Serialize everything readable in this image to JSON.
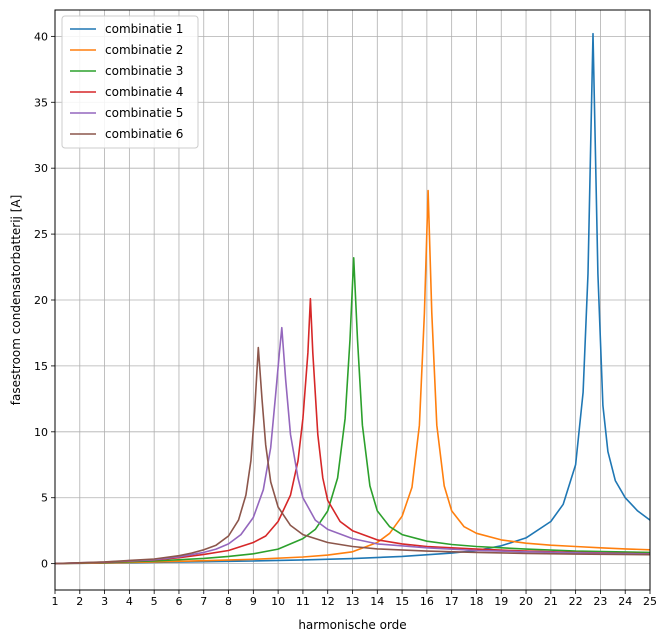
{
  "chart_data": {
    "type": "line",
    "xlabel": "harmonische orde",
    "ylabel": "fasestroom condensatorbatterij [A]",
    "xlim": [
      1,
      25
    ],
    "ylim": [
      -2,
      42
    ],
    "xticks": [
      1,
      2,
      3,
      4,
      5,
      6,
      7,
      8,
      9,
      10,
      11,
      12,
      13,
      14,
      15,
      16,
      17,
      18,
      19,
      20,
      21,
      22,
      23,
      24,
      25
    ],
    "yticks": [
      0,
      5,
      10,
      15,
      20,
      25,
      30,
      35,
      40
    ],
    "grid": true,
    "legend_position": "top-left",
    "series": [
      {
        "name": "combinatie 1",
        "color": "#1f77b4",
        "x": [
          1,
          3,
          5,
          7,
          9,
          11,
          13,
          15,
          17,
          18,
          19,
          20,
          21,
          21.5,
          22,
          22.3,
          22.5,
          22.7,
          22.9,
          23.1,
          23.3,
          23.6,
          24,
          24.5,
          25
        ],
        "y": [
          0,
          0.04,
          0.1,
          0.15,
          0.2,
          0.28,
          0.38,
          0.55,
          0.8,
          1.0,
          1.35,
          1.95,
          3.2,
          4.5,
          7.5,
          13,
          22,
          40.2,
          22,
          12,
          8.5,
          6.3,
          5.0,
          4.0,
          3.3
        ]
      },
      {
        "name": "combinatie 2",
        "color": "#ff7f0e",
        "x": [
          1,
          3,
          5,
          7,
          9,
          11,
          12,
          13,
          14,
          14.5,
          15,
          15.4,
          15.7,
          15.9,
          16.05,
          16.2,
          16.4,
          16.7,
          17,
          17.5,
          18,
          19,
          20,
          21,
          22,
          23,
          24,
          25
        ],
        "y": [
          0,
          0.05,
          0.13,
          0.22,
          0.33,
          0.5,
          0.65,
          0.9,
          1.6,
          2.3,
          3.6,
          5.8,
          10.5,
          19,
          28.3,
          19,
          10.5,
          5.9,
          4.0,
          2.8,
          2.3,
          1.8,
          1.55,
          1.4,
          1.3,
          1.2,
          1.12,
          1.05
        ]
      },
      {
        "name": "combinatie 3",
        "color": "#2ca02c",
        "x": [
          1,
          3,
          5,
          7,
          8,
          9,
          10,
          11,
          11.5,
          12,
          12.4,
          12.7,
          12.9,
          13.05,
          13.2,
          13.4,
          13.7,
          14,
          14.5,
          15,
          16,
          17,
          18,
          20,
          22,
          25
        ],
        "y": [
          0,
          0.08,
          0.2,
          0.4,
          0.55,
          0.75,
          1.1,
          1.9,
          2.6,
          4.0,
          6.5,
          11,
          17,
          23.2,
          17,
          10.5,
          5.9,
          4.0,
          2.8,
          2.2,
          1.7,
          1.45,
          1.3,
          1.1,
          0.95,
          0.85
        ]
      },
      {
        "name": "combinatie 4",
        "color": "#d62728",
        "x": [
          1,
          3,
          5,
          6,
          7,
          8,
          9,
          9.5,
          10,
          10.5,
          10.8,
          11,
          11.2,
          11.3,
          11.4,
          11.6,
          11.8,
          12,
          12.5,
          13,
          14,
          15,
          16,
          18,
          20,
          22,
          25
        ],
        "y": [
          0,
          0.1,
          0.28,
          0.45,
          0.7,
          1.0,
          1.6,
          2.1,
          3.2,
          5.2,
          7.8,
          11,
          16,
          20.1,
          16,
          9.8,
          6.5,
          4.8,
          3.2,
          2.5,
          1.8,
          1.5,
          1.3,
          1.1,
          0.95,
          0.85,
          0.75
        ]
      },
      {
        "name": "combinatie 5",
        "color": "#9467bd",
        "x": [
          1,
          3,
          5,
          6,
          7,
          7.5,
          8,
          8.5,
          9,
          9.4,
          9.7,
          9.9,
          10.05,
          10.15,
          10.3,
          10.5,
          10.8,
          11,
          11.5,
          12,
          13,
          14,
          16,
          18,
          20,
          22,
          25
        ],
        "y": [
          0,
          0.12,
          0.3,
          0.52,
          0.85,
          1.1,
          1.5,
          2.2,
          3.5,
          5.6,
          8.8,
          12.8,
          16,
          17.9,
          14,
          9.8,
          6.5,
          5.0,
          3.3,
          2.6,
          1.9,
          1.5,
          1.2,
          1.0,
          0.9,
          0.82,
          0.72
        ]
      },
      {
        "name": "combinatie 6",
        "color": "#8c564b",
        "x": [
          1,
          3,
          5,
          6,
          6.5,
          7,
          7.5,
          8,
          8.4,
          8.7,
          8.9,
          9.05,
          9.2,
          9.35,
          9.5,
          9.7,
          10,
          10.5,
          11,
          12,
          13,
          14,
          16,
          18,
          20,
          22,
          25
        ],
        "y": [
          0,
          0.13,
          0.35,
          0.6,
          0.8,
          1.05,
          1.4,
          2.1,
          3.3,
          5.2,
          7.8,
          11.5,
          16.4,
          12.5,
          9.0,
          6.2,
          4.3,
          2.9,
          2.2,
          1.6,
          1.3,
          1.12,
          0.95,
          0.85,
          0.78,
          0.72,
          0.68
        ]
      }
    ]
  }
}
